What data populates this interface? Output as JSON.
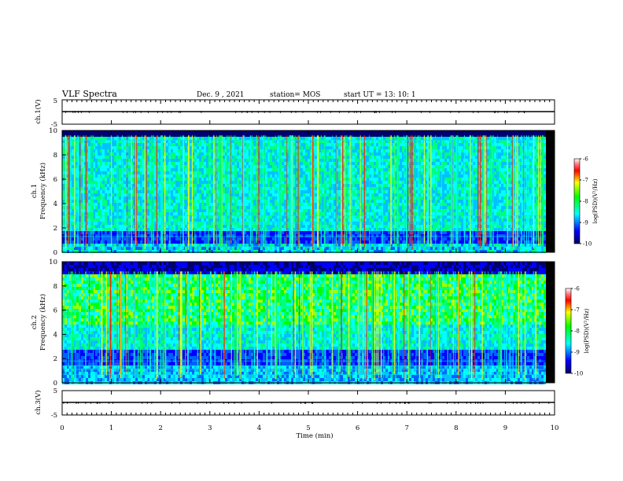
{
  "header": {
    "title": "VLF  Spectra",
    "date": "Dec. 9  , 2021",
    "station": "station= MOS",
    "start": "start  UT  =   13: 10: 1"
  },
  "chart_data": [
    {
      "type": "line",
      "name": "ch1-waveform",
      "ylabel": "ch.1(V)",
      "ylim": [
        -5,
        5
      ],
      "yticks": [
        "5",
        "-5"
      ],
      "x": [
        0,
        10
      ],
      "series": [
        {
          "values": [
            0,
            0
          ]
        }
      ]
    },
    {
      "type": "heatmap",
      "name": "ch1-spectrogram",
      "ylabel": "ch.1\nFrequency (kHz)",
      "ylim": [
        0,
        10
      ],
      "yticks": [
        "0",
        "2",
        "4",
        "6",
        "8",
        "10"
      ],
      "colorbar": {
        "min": -10,
        "max": -6,
        "ticks": [
          "-6",
          "-7",
          "-8",
          "-9",
          "-10"
        ],
        "label": "log(PSD)(V²/Hz)"
      }
    },
    {
      "type": "heatmap",
      "name": "ch2-spectrogram",
      "ylabel": "ch.2\nFrequency (kHz)",
      "ylim": [
        0,
        10
      ],
      "yticks": [
        "0",
        "2",
        "4",
        "6",
        "8",
        "10"
      ],
      "colorbar": {
        "min": -10,
        "max": -6,
        "ticks": [
          "-6",
          "-7",
          "-8",
          "-9",
          "-10"
        ],
        "label": "log(PSD)(V²/Hz)"
      }
    },
    {
      "type": "line",
      "name": "ch3-waveform",
      "ylabel": "ch.3(V)",
      "ylim": [
        -5,
        5
      ],
      "yticks": [
        "5",
        "-5"
      ],
      "x": [
        0,
        10
      ],
      "series": [
        {
          "values": [
            0,
            0
          ]
        }
      ]
    }
  ],
  "xaxis": {
    "label": "Time  (min)",
    "xlim": [
      0,
      10
    ],
    "ticks": [
      "0",
      "1",
      "2",
      "3",
      "4",
      "5",
      "6",
      "7",
      "8",
      "9",
      "10"
    ]
  }
}
